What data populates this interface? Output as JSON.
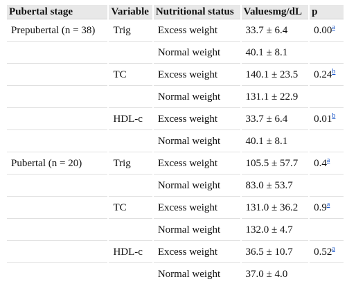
{
  "table": {
    "headers": {
      "stage": "Pubertal stage",
      "variable": "Variable",
      "nutritional": "Nutritional status",
      "values": "Valuesmg/dL",
      "p": "p"
    },
    "groups": [
      {
        "stage": "Prepubertal (n = 38)",
        "variables": [
          {
            "name": "Trig",
            "rows": [
              {
                "status": "Excess weight",
                "value": "33.7 ± 6.4",
                "p": "0.00",
                "note": "a"
              },
              {
                "status": "Normal weight",
                "value": "40.1 ± 8.1",
                "p": "",
                "note": ""
              }
            ]
          },
          {
            "name": "TC",
            "rows": [
              {
                "status": "Excess weight",
                "value": "140.1 ± 23.5",
                "p": "0.24",
                "note": "b"
              },
              {
                "status": "Normal weight",
                "value": "131.1 ± 22.9",
                "p": "",
                "note": ""
              }
            ]
          },
          {
            "name": "HDL-c",
            "rows": [
              {
                "status": "Excess weight",
                "value": "33.7 ± 6.4",
                "p": "0.01",
                "note": "b"
              },
              {
                "status": "Normal weight",
                "value": "40.1 ± 8.1",
                "p": "",
                "note": ""
              }
            ]
          }
        ]
      },
      {
        "stage": "Pubertal (n = 20)",
        "variables": [
          {
            "name": "Trig",
            "rows": [
              {
                "status": "Excess weight",
                "value": "105.5 ± 57.7",
                "p": "0.4",
                "note": "a"
              },
              {
                "status": "Normal weight",
                "value": "83.0 ± 53.7",
                "p": "",
                "note": ""
              }
            ]
          },
          {
            "name": "TC",
            "rows": [
              {
                "status": "Excess weight",
                "value": "131.0 ± 36.2",
                "p": "0.9",
                "note": "a"
              },
              {
                "status": "Normal weight",
                "value": "132.0 ± 4.7",
                "p": "",
                "note": ""
              }
            ]
          },
          {
            "name": "HDL-c",
            "rows": [
              {
                "status": "Excess weight",
                "value": "36.5 ± 10.7",
                "p": "0.52",
                "note": "a"
              },
              {
                "status": "Normal weight",
                "value": "37.0 ± 4.0",
                "p": "",
                "note": ""
              }
            ]
          }
        ]
      }
    ]
  }
}
